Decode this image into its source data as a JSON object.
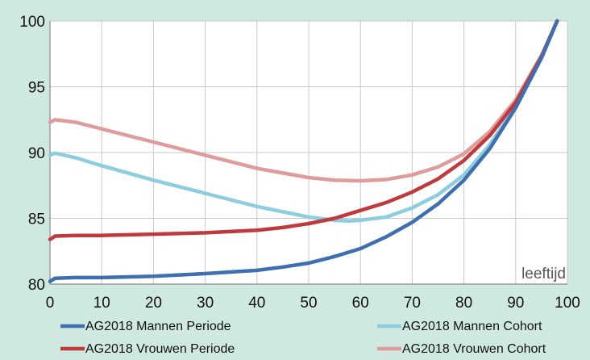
{
  "chart_data": {
    "type": "line",
    "title": "",
    "xlabel": "",
    "ylabel": "",
    "xlim": [
      0,
      100
    ],
    "ylim": [
      80,
      100
    ],
    "x_ticks": [
      0,
      10,
      20,
      30,
      40,
      50,
      60,
      70,
      80,
      90,
      100
    ],
    "y_ticks": [
      80,
      85,
      90,
      95,
      100
    ],
    "grid": true,
    "legend": "bottom",
    "annotation": "leeftijd",
    "series": [
      {
        "name": "AG2018 Mannen Periode",
        "color": "#3e6fb0",
        "x": [
          0,
          1,
          5,
          10,
          20,
          30,
          40,
          45,
          50,
          55,
          60,
          65,
          70,
          75,
          80,
          85,
          90,
          95,
          98
        ],
        "y": [
          80.2,
          80.45,
          80.5,
          80.5,
          80.6,
          80.8,
          81.05,
          81.3,
          81.6,
          82.1,
          82.7,
          83.6,
          84.7,
          86.1,
          87.9,
          90.3,
          93.4,
          97.2,
          100
        ]
      },
      {
        "name": "AG2018 Mannen Cohort",
        "color": "#8ccde0",
        "x": [
          0,
          1,
          5,
          10,
          20,
          30,
          40,
          50,
          55,
          58,
          60,
          65,
          70,
          75,
          80,
          85,
          90,
          95,
          98
        ],
        "y": [
          89.8,
          89.95,
          89.6,
          89.0,
          87.9,
          86.9,
          85.9,
          85.1,
          84.85,
          84.8,
          84.85,
          85.1,
          85.8,
          86.8,
          88.3,
          90.6,
          93.5,
          97.2,
          100
        ]
      },
      {
        "name": "AG2018 Vrouwen Periode",
        "color": "#c0393c",
        "x": [
          0,
          1,
          5,
          10,
          20,
          30,
          40,
          45,
          50,
          55,
          60,
          65,
          70,
          75,
          80,
          85,
          90,
          95,
          98
        ],
        "y": [
          83.4,
          83.65,
          83.7,
          83.7,
          83.8,
          83.9,
          84.1,
          84.3,
          84.6,
          85.0,
          85.6,
          86.2,
          87.0,
          88.0,
          89.4,
          91.3,
          93.8,
          97.3,
          100
        ]
      },
      {
        "name": "AG2018 Vrouwen Cohort",
        "color": "#e09b9b",
        "x": [
          0,
          1,
          5,
          10,
          20,
          30,
          40,
          50,
          55,
          60,
          65,
          70,
          75,
          80,
          85,
          90,
          95,
          98
        ],
        "y": [
          92.3,
          92.5,
          92.3,
          91.8,
          90.8,
          89.8,
          88.8,
          88.1,
          87.9,
          87.85,
          87.95,
          88.3,
          88.9,
          89.9,
          91.6,
          94.0,
          97.4,
          100
        ]
      }
    ]
  }
}
